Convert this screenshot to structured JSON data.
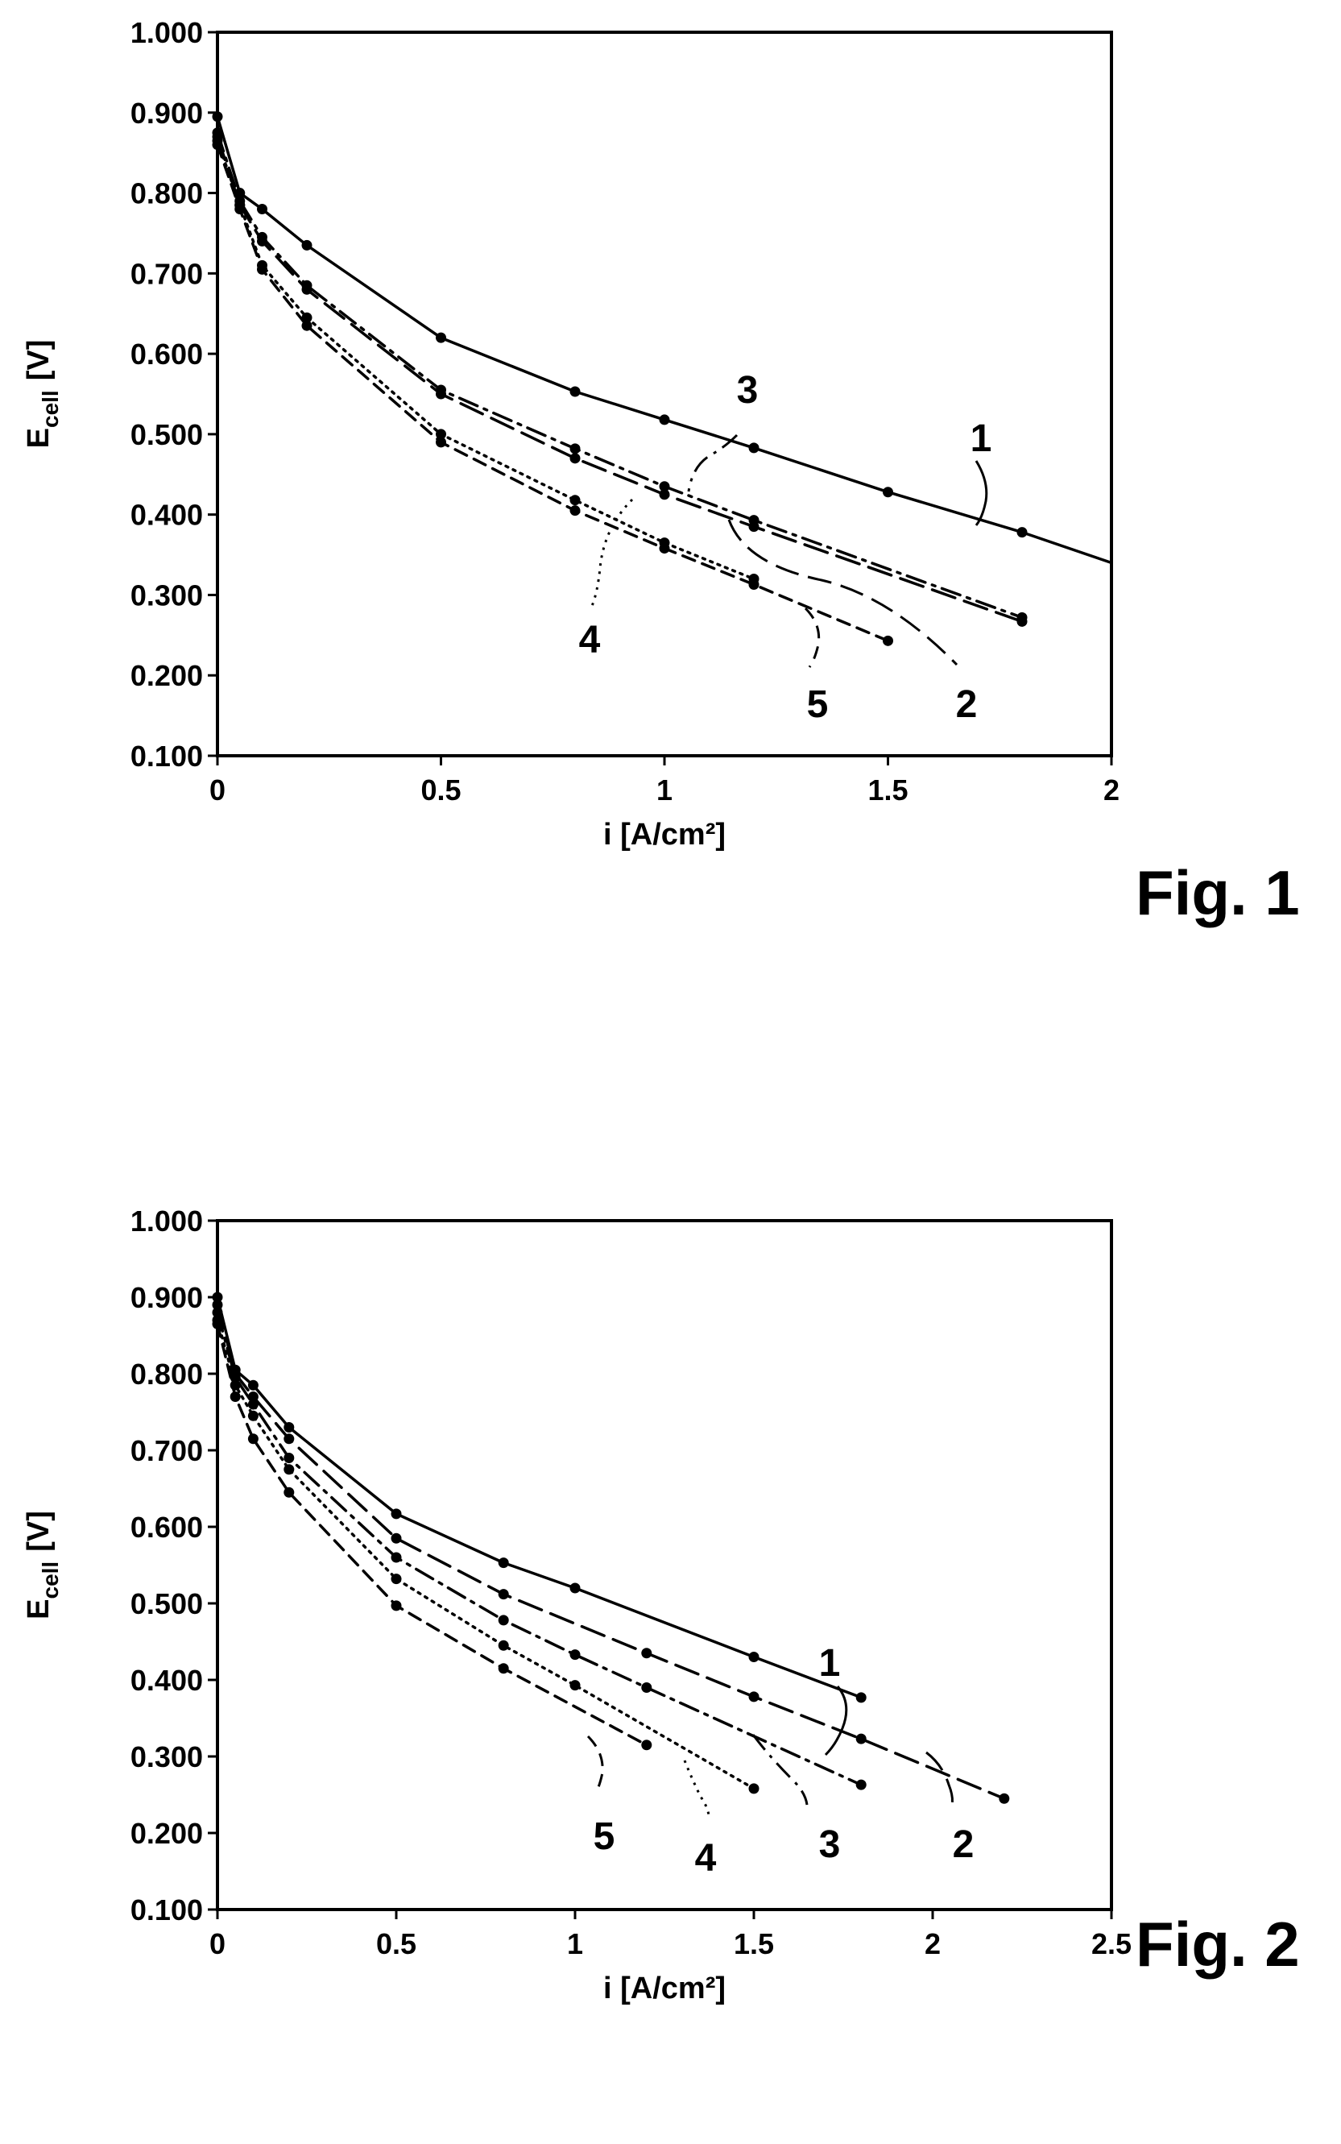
{
  "chart_data": [
    {
      "type": "line",
      "figure_label": "Fig. 1",
      "xlabel": "i [A/cm²]",
      "ylabel_main": "E",
      "ylabel_sub": "cell",
      "ylabel_unit": "[V]",
      "xlim": [
        0,
        2
      ],
      "ylim": [
        0.1,
        1.0
      ],
      "xticks": [
        "0",
        "0.5",
        "1",
        "1.5",
        "2"
      ],
      "yticks": [
        "0.100",
        "0.200",
        "0.300",
        "0.400",
        "0.500",
        "0.600",
        "0.700",
        "0.800",
        "0.900",
        "1.000"
      ],
      "series": [
        {
          "label": "1",
          "dash": "solid",
          "x": [
            0,
            0.05,
            0.1,
            0.2,
            0.5,
            0.8,
            1.0,
            1.2,
            1.5,
            1.8
          ],
          "y": [
            0.895,
            0.8,
            0.78,
            0.735,
            0.62,
            0.553,
            0.518,
            0.483,
            0.428,
            0.378
          ],
          "extend_to": [
            2.0,
            0.34
          ]
        },
        {
          "label": "2",
          "dash": "longdash",
          "x": [
            0,
            0.05,
            0.1,
            0.2,
            0.5,
            0.8,
            1.0,
            1.2,
            1.8
          ],
          "y": [
            0.87,
            0.785,
            0.74,
            0.68,
            0.55,
            0.47,
            0.425,
            0.385,
            0.267
          ]
        },
        {
          "label": "3",
          "dash": "dashdot",
          "x": [
            0,
            0.05,
            0.1,
            0.2,
            0.5,
            0.8,
            1.0,
            1.2,
            1.8
          ],
          "y": [
            0.875,
            0.79,
            0.745,
            0.685,
            0.555,
            0.482,
            0.435,
            0.393,
            0.272
          ]
        },
        {
          "label": "4",
          "dash": "dotted",
          "x": [
            0,
            0.05,
            0.1,
            0.2,
            0.5,
            0.8,
            1.0,
            1.2
          ],
          "y": [
            0.865,
            0.785,
            0.71,
            0.645,
            0.5,
            0.418,
            0.365,
            0.32
          ]
        },
        {
          "label": "5",
          "dash": "dashed",
          "x": [
            0,
            0.05,
            0.1,
            0.2,
            0.5,
            0.8,
            1.0,
            1.2,
            1.5
          ],
          "y": [
            0.86,
            0.78,
            0.705,
            0.635,
            0.49,
            0.405,
            0.358,
            0.313,
            0.243
          ]
        }
      ]
    },
    {
      "type": "line",
      "figure_label": "Fig. 2",
      "xlabel": "i [A/cm²]",
      "ylabel_main": "E",
      "ylabel_sub": "cell",
      "ylabel_unit": "[V]",
      "xlim": [
        0,
        2.5
      ],
      "ylim": [
        0.1,
        1.0
      ],
      "xticks": [
        "0",
        "0.5",
        "1",
        "1.5",
        "2",
        "2.5"
      ],
      "yticks": [
        "0.100",
        "0.200",
        "0.300",
        "0.400",
        "0.500",
        "0.600",
        "0.700",
        "0.800",
        "0.900",
        "1.000"
      ],
      "series": [
        {
          "label": "1",
          "dash": "solid",
          "x": [
            0,
            0.05,
            0.1,
            0.2,
            0.5,
            0.8,
            1.0,
            1.5,
            1.8
          ],
          "y": [
            0.9,
            0.805,
            0.785,
            0.73,
            0.617,
            0.553,
            0.52,
            0.43,
            0.377
          ]
        },
        {
          "label": "2",
          "dash": "longdash",
          "x": [
            0,
            0.05,
            0.1,
            0.2,
            0.5,
            0.8,
            1.2,
            1.5,
            1.8,
            2.2
          ],
          "y": [
            0.89,
            0.8,
            0.77,
            0.715,
            0.585,
            0.512,
            0.435,
            0.378,
            0.323,
            0.245
          ]
        },
        {
          "label": "3",
          "dash": "dashdot",
          "x": [
            0,
            0.05,
            0.1,
            0.2,
            0.5,
            0.8,
            1.0,
            1.2,
            1.8
          ],
          "y": [
            0.88,
            0.795,
            0.76,
            0.69,
            0.56,
            0.478,
            0.433,
            0.39,
            0.263
          ]
        },
        {
          "label": "4",
          "dash": "dotted",
          "x": [
            0,
            0.05,
            0.1,
            0.2,
            0.5,
            0.8,
            1.0,
            1.5
          ],
          "y": [
            0.87,
            0.785,
            0.745,
            0.675,
            0.532,
            0.445,
            0.393,
            0.258
          ]
        },
        {
          "label": "5",
          "dash": "dashed",
          "x": [
            0,
            0.05,
            0.1,
            0.2,
            0.5,
            0.8,
            1.2
          ],
          "y": [
            0.865,
            0.77,
            0.715,
            0.645,
            0.497,
            0.415,
            0.315
          ]
        }
      ]
    }
  ]
}
